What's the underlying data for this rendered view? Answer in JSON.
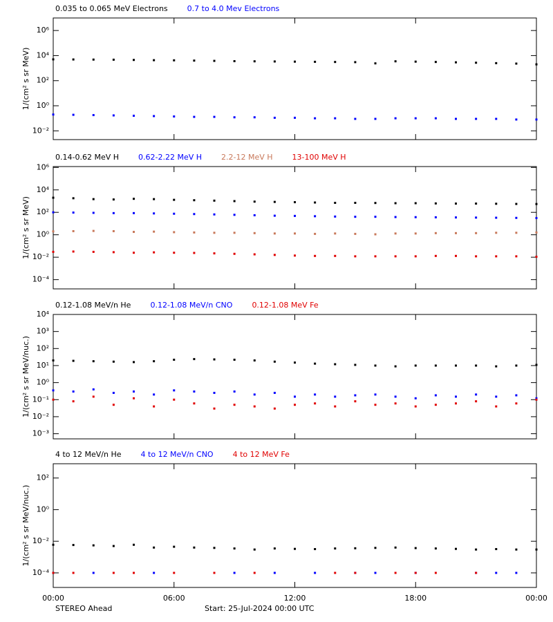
{
  "chart_data": [
    {
      "type": "scatter",
      "ylabel": "1/(cm² s sr MeV)",
      "log_y": true,
      "x": [
        0,
        1,
        2,
        3,
        4,
        5,
        6,
        7,
        8,
        9,
        10,
        11,
        12,
        13,
        14,
        15,
        16,
        17,
        18,
        19,
        20,
        21,
        22,
        23,
        24
      ],
      "xlim": [
        0,
        24
      ],
      "xticks": [
        0,
        6,
        12,
        18,
        24
      ],
      "ylim": [
        0.002,
        10000000
      ],
      "yticks": [
        {
          "value": 0.01,
          "label": "10⁻²"
        },
        {
          "value": 1,
          "label": "10⁰"
        },
        {
          "value": 100,
          "label": "10²"
        },
        {
          "value": 10000,
          "label": "10⁴"
        },
        {
          "value": 1000000,
          "label": "10⁶"
        }
      ],
      "series": [
        {
          "name": "0.035 to 0.065 MeV Electrons",
          "color": "#000000",
          "values": [
            5000,
            4900,
            4800,
            4700,
            4500,
            4300,
            4200,
            4000,
            3800,
            3600,
            3500,
            3400,
            3300,
            3200,
            3100,
            3000,
            2400,
            3500,
            3300,
            3100,
            2900,
            2700,
            2500,
            2300,
            2000
          ]
        },
        {
          "name": "0.7 to 4.0 Mev Electrons",
          "color": "#0000ff",
          "values": [
            0.2,
            0.19,
            0.18,
            0.17,
            0.16,
            0.15,
            0.14,
            0.13,
            0.13,
            0.12,
            0.12,
            0.11,
            0.11,
            0.1,
            0.1,
            0.09,
            0.09,
            0.1,
            0.1,
            0.1,
            0.09,
            0.09,
            0.09,
            0.08,
            0.08
          ]
        }
      ]
    },
    {
      "type": "scatter",
      "ylabel": "1/(cm² s sr MeV)",
      "log_y": true,
      "x": [
        0,
        1,
        2,
        3,
        4,
        5,
        6,
        7,
        8,
        9,
        10,
        11,
        12,
        13,
        14,
        15,
        16,
        17,
        18,
        19,
        20,
        21,
        22,
        23,
        24
      ],
      "xlim": [
        0,
        24
      ],
      "xticks": [
        0,
        6,
        12,
        18,
        24
      ],
      "ylim": [
        1.5e-05,
        1200000
      ],
      "yticks": [
        {
          "value": 0.0001,
          "label": "10⁻⁴"
        },
        {
          "value": 0.01,
          "label": "10⁻²"
        },
        {
          "value": 1,
          "label": "10⁰"
        },
        {
          "value": 100,
          "label": "10²"
        },
        {
          "value": 10000,
          "label": "10⁴"
        },
        {
          "value": 1000000,
          "label": "10⁶"
        }
      ],
      "series": [
        {
          "name": "0.14-0.62 MeV H",
          "color": "#000000",
          "values": [
            2000,
            1800,
            1500,
            1400,
            1600,
            1500,
            1300,
            1200,
            1100,
            1000,
            900,
            850,
            800,
            750,
            700,
            700,
            680,
            650,
            650,
            620,
            600,
            600,
            580,
            560,
            550
          ]
        },
        {
          "name": "0.62-2.22 MeV H",
          "color": "#0000ff",
          "values": [
            100,
            95,
            90,
            85,
            85,
            80,
            75,
            70,
            65,
            60,
            55,
            50,
            48,
            45,
            42,
            40,
            40,
            38,
            37,
            36,
            35,
            34,
            33,
            32,
            31
          ]
        },
        {
          "name": "2.2-12 MeV H",
          "color": "#c8785a",
          "values": [
            2,
            2.1,
            2.2,
            2.1,
            1.8,
            1.9,
            1.7,
            1.6,
            1.5,
            1.5,
            1.4,
            1.3,
            1.3,
            1.2,
            1.3,
            1.2,
            1.1,
            1.3,
            1.3,
            1.4,
            1.4,
            1.4,
            1.5,
            1.5,
            1.6
          ]
        },
        {
          "name": "13-100 MeV H",
          "color": "#e00000",
          "values": [
            0.03,
            0.032,
            0.03,
            0.028,
            0.025,
            0.027,
            0.025,
            0.024,
            0.022,
            0.02,
            0.018,
            0.016,
            0.014,
            0.013,
            0.013,
            0.012,
            0.012,
            0.012,
            0.012,
            0.013,
            0.013,
            0.012,
            0.012,
            0.012,
            0.011
          ]
        }
      ]
    },
    {
      "type": "scatter",
      "ylabel": "1/(cm² s sr MeV/nuc.)",
      "log_y": true,
      "x": [
        0,
        1,
        2,
        3,
        4,
        5,
        6,
        7,
        8,
        9,
        10,
        11,
        12,
        13,
        14,
        15,
        16,
        17,
        18,
        19,
        20,
        21,
        22,
        23,
        24
      ],
      "xlim": [
        0,
        24
      ],
      "xticks": [
        0,
        6,
        12,
        18,
        24
      ],
      "ylim": [
        0.0005,
        10000
      ],
      "yticks": [
        {
          "value": 0.001,
          "label": "10⁻³"
        },
        {
          "value": 0.01,
          "label": "10⁻²"
        },
        {
          "value": 0.1,
          "label": "10⁻¹"
        },
        {
          "value": 1,
          "label": "10⁰"
        },
        {
          "value": 10,
          "label": "10¹"
        },
        {
          "value": 100,
          "label": "10²"
        },
        {
          "value": 1000,
          "label": "10³"
        },
        {
          "value": 10000,
          "label": "10⁴"
        }
      ],
      "series": [
        {
          "name": "0.12-1.08 MeV/n He",
          "color": "#000000",
          "values": [
            20,
            19,
            18,
            17,
            16,
            18,
            22,
            24,
            23,
            22,
            20,
            17,
            15,
            13,
            12,
            11,
            10,
            9,
            10,
            10,
            10,
            10,
            9,
            10,
            11
          ]
        },
        {
          "name": "0.12-1.08 MeV/n CNO",
          "color": "#0000ff",
          "values": [
            0.35,
            0.3,
            0.4,
            0.25,
            0.3,
            0.2,
            0.35,
            0.3,
            0.25,
            0.3,
            0.2,
            0.25,
            0.15,
            0.2,
            0.15,
            0.18,
            0.2,
            0.15,
            0.12,
            0.18,
            0.15,
            0.2,
            0.15,
            0.18,
            0.12
          ]
        },
        {
          "name": "0.12-1.08 MeV Fe",
          "color": "#e00000",
          "values": [
            0.1,
            0.08,
            0.15,
            0.05,
            0.12,
            0.04,
            0.1,
            0.06,
            0.03,
            0.05,
            0.04,
            0.03,
            0.05,
            0.06,
            0.04,
            0.08,
            0.05,
            0.06,
            0.04,
            0.05,
            0.06,
            0.08,
            0.04,
            0.06,
            0.1
          ]
        }
      ]
    },
    {
      "type": "scatter",
      "ylabel": "1/(cm² s sr MeV/nuc.)",
      "log_y": true,
      "x": [
        0,
        1,
        2,
        3,
        4,
        5,
        6,
        7,
        8,
        9,
        10,
        11,
        12,
        13,
        14,
        15,
        16,
        17,
        18,
        19,
        20,
        21,
        22,
        23,
        24
      ],
      "xlim": [
        0,
        24
      ],
      "xticks": [
        {
          "value": 0,
          "label": "00:00"
        },
        {
          "value": 6,
          "label": "06:00"
        },
        {
          "value": 12,
          "label": "12:00"
        },
        {
          "value": 18,
          "label": "18:00"
        },
        {
          "value": 24,
          "label": "00:00"
        }
      ],
      "ylim": [
        1.2e-05,
        800
      ],
      "yticks": [
        {
          "value": 0.0001,
          "label": "10⁻⁴"
        },
        {
          "value": 0.01,
          "label": "10⁻²"
        },
        {
          "value": 1,
          "label": "10⁰"
        },
        {
          "value": 100,
          "label": "10²"
        }
      ],
      "annotations": [
        "STEREO Ahead",
        "Start: 25-Jul-2024 00:00 UTC"
      ],
      "series": [
        {
          "name": "4 to 12 MeV/n He",
          "color": "#000000",
          "values": [
            0.006,
            0.0058,
            0.0055,
            0.005,
            0.006,
            0.004,
            0.0045,
            0.004,
            0.0038,
            0.0035,
            0.003,
            0.0035,
            0.0033,
            0.0032,
            0.0035,
            0.0036,
            0.0038,
            0.004,
            0.0037,
            0.0035,
            0.0033,
            0.003,
            0.0032,
            0.003,
            0.003
          ]
        },
        {
          "name": "4 to 12 MeV/n CNO",
          "color": "#0000ff",
          "values": [
            0.0001,
            null,
            0.0001,
            null,
            null,
            0.0001,
            null,
            null,
            null,
            0.0001,
            null,
            0.0001,
            null,
            0.0001,
            null,
            0.0001,
            0.0001,
            null,
            0.0001,
            null,
            null,
            0.0001,
            0.0001,
            0.0001,
            null
          ]
        },
        {
          "name": "4 to 12 MeV Fe",
          "color": "#e00000",
          "values": [
            0.0001,
            0.0001,
            null,
            0.0001,
            0.0001,
            null,
            0.0001,
            null,
            0.0001,
            null,
            0.0001,
            null,
            null,
            null,
            0.0001,
            0.0001,
            null,
            0.0001,
            0.0001,
            0.0001,
            null,
            0.0001,
            null,
            null,
            null
          ]
        }
      ]
    }
  ]
}
